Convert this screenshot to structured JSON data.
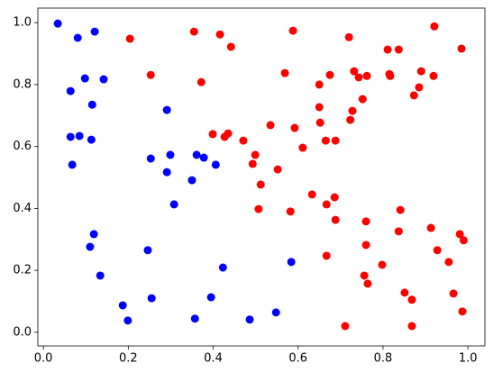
{
  "chart_data": {
    "type": "scatter",
    "xlim": [
      -0.013,
      1.04
    ],
    "ylim": [
      -0.044,
      1.047
    ],
    "xticks": [
      {
        "value": 0,
        "label": "0.0"
      },
      0.2,
      0.4,
      0.6,
      0.8,
      {
        "value": 1,
        "label": "1.0"
      }
    ],
    "yticks": [
      {
        "value": 0,
        "label": "0.0"
      },
      0.2,
      0.4,
      0.6,
      0.8,
      {
        "value": 1,
        "label": "1.0"
      }
    ],
    "series": [
      {
        "color": "#0000ff",
        "x": [
          0.034,
          0.081,
          0.121,
          0.098,
          0.142,
          0.064,
          0.115,
          0.291,
          0.064,
          0.085,
          0.113,
          0.068,
          0.253,
          0.291,
          0.299,
          0.361,
          0.378,
          0.406,
          0.35,
          0.308,
          0.119,
          0.11,
          0.246,
          0.423,
          0.134,
          0.584,
          0.255,
          0.395,
          0.187,
          0.199,
          0.357,
          0.486,
          0.548
        ],
        "values": [
          0.997,
          0.951,
          0.971,
          0.82,
          0.817,
          0.779,
          0.735,
          0.718,
          0.631,
          0.634,
          0.622,
          0.541,
          0.561,
          0.517,
          0.573,
          0.573,
          0.564,
          0.541,
          0.491,
          0.413,
          0.317,
          0.276,
          0.265,
          0.209,
          0.183,
          0.227,
          0.11,
          0.113,
          0.087,
          0.038,
          0.044,
          0.041,
          0.064
        ]
      },
      {
        "color": "#ff0000",
        "x": [
          0.204,
          0.355,
          0.416,
          0.442,
          0.588,
          0.72,
          0.921,
          0.985,
          0.811,
          0.837,
          0.815,
          0.817,
          0.89,
          0.919,
          0.253,
          0.372,
          0.569,
          0.675,
          0.732,
          0.743,
          0.762,
          0.65,
          0.885,
          0.752,
          0.873,
          0.65,
          0.728,
          0.723,
          0.652,
          0.535,
          0.592,
          0.399,
          0.427,
          0.435,
          0.471,
          0.665,
          0.688,
          0.611,
          0.499,
          0.493,
          0.552,
          0.512,
          0.633,
          0.667,
          0.686,
          0.582,
          0.507,
          0.841,
          0.688,
          0.76,
          0.913,
          0.837,
          0.76,
          0.928,
          0.955,
          0.981,
          0.99,
          0.667,
          0.798,
          0.756,
          0.764,
          0.851,
          0.868,
          0.966,
          0.987,
          0.711,
          0.868
        ],
        "values": [
          0.948,
          0.971,
          0.962,
          0.922,
          0.974,
          0.953,
          0.988,
          0.916,
          0.913,
          0.913,
          0.834,
          0.828,
          0.843,
          0.828,
          0.831,
          0.808,
          0.837,
          0.831,
          0.843,
          0.823,
          0.828,
          0.8,
          0.791,
          0.753,
          0.765,
          0.727,
          0.715,
          0.686,
          0.677,
          0.669,
          0.66,
          0.64,
          0.631,
          0.642,
          0.619,
          0.619,
          0.619,
          0.596,
          0.573,
          0.544,
          0.526,
          0.477,
          0.445,
          0.413,
          0.436,
          0.39,
          0.398,
          0.395,
          0.363,
          0.358,
          0.337,
          0.326,
          0.282,
          0.265,
          0.227,
          0.317,
          0.297,
          0.247,
          0.218,
          0.183,
          0.157,
          0.128,
          0.105,
          0.125,
          0.067,
          0.02,
          0.02
        ]
      }
    ]
  }
}
